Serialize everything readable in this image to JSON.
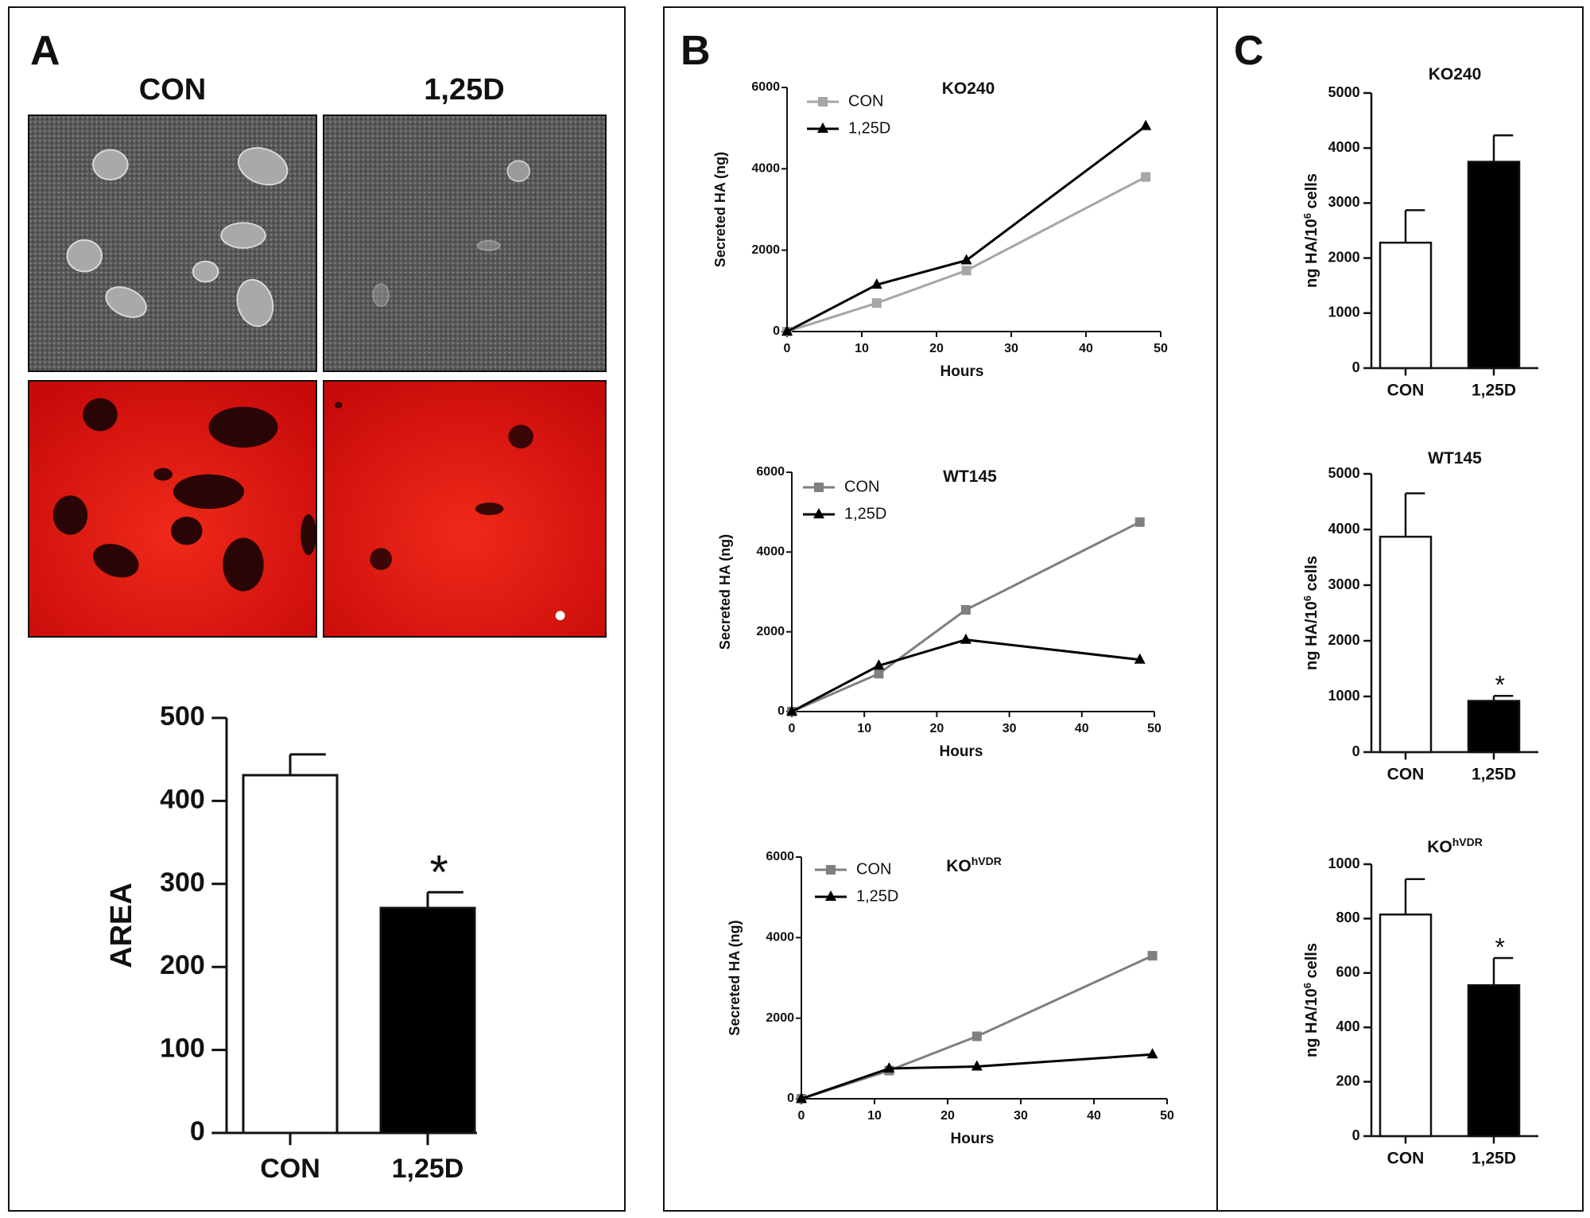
{
  "panels": {
    "a": {
      "letter": "A",
      "col_labels": [
        "CON",
        "1,25D"
      ]
    },
    "b": {
      "letter": "B"
    },
    "c": {
      "letter": "C"
    }
  },
  "micrographs": [
    {
      "name": "phase-contrast-con",
      "kind": "phase",
      "condition": "CON"
    },
    {
      "name": "phase-contrast-125d",
      "kind": "phase",
      "condition": "1,25D"
    },
    {
      "name": "fluorescence-con",
      "kind": "red",
      "condition": "CON"
    },
    {
      "name": "fluorescence-125d",
      "kind": "red",
      "condition": "1,25D"
    }
  ],
  "colors": {
    "black": "#000000",
    "light_gray": "#a6a6a6",
    "mid_gray": "#7f7f7f",
    "red": "#e01010",
    "white": "#ffffff"
  },
  "chart_data": [
    {
      "id": "a-area",
      "type": "bar",
      "title": "",
      "xlabel": "",
      "ylabel": "AREA",
      "categories": [
        "CON",
        "1,25D"
      ],
      "values": [
        431,
        271
      ],
      "errors": [
        25,
        19
      ],
      "fills": [
        "#ffffff",
        "#000000"
      ],
      "significance": [
        "",
        "*"
      ],
      "ylim": [
        0,
        500
      ],
      "yticks": [
        0,
        100,
        200,
        300,
        400,
        500
      ]
    },
    {
      "id": "b-ko240",
      "type": "line",
      "title": "KO240",
      "xlabel": "Hours",
      "ylabel": "Secreted HA (ng)",
      "xlim": [
        0,
        50
      ],
      "ylim": [
        0,
        6000
      ],
      "xticks": [
        0,
        10,
        20,
        30,
        40,
        50
      ],
      "yticks": [
        0,
        2000,
        4000,
        6000
      ],
      "legend": "top-left",
      "series": [
        {
          "name": "CON",
          "color": "#a6a6a6",
          "marker": "square",
          "x": [
            0,
            12,
            24,
            48
          ],
          "y": [
            0,
            700,
            1500,
            3800
          ]
        },
        {
          "name": "1,25D",
          "color": "#000000",
          "marker": "triangle",
          "x": [
            0,
            12,
            24,
            48
          ],
          "y": [
            0,
            1150,
            1750,
            5050
          ]
        }
      ]
    },
    {
      "id": "b-wt145",
      "type": "line",
      "title": "WT145",
      "xlabel": "Hours",
      "ylabel": "Secreted HA (ng)",
      "xlim": [
        0,
        50
      ],
      "ylim": [
        0,
        6000
      ],
      "xticks": [
        0,
        10,
        20,
        30,
        40,
        50
      ],
      "yticks": [
        0,
        2000,
        4000,
        6000
      ],
      "legend": "top-left",
      "series": [
        {
          "name": "CON",
          "color": "#7f7f7f",
          "marker": "square",
          "x": [
            0,
            12,
            24,
            48
          ],
          "y": [
            0,
            950,
            2550,
            4750
          ]
        },
        {
          "name": "1,25D",
          "color": "#000000",
          "marker": "triangle",
          "x": [
            0,
            12,
            24,
            48
          ],
          "y": [
            0,
            1150,
            1800,
            1300
          ]
        }
      ]
    },
    {
      "id": "b-kohvdr",
      "type": "line",
      "title": "KO",
      "title_sup": "hVDR",
      "xlabel": "Hours",
      "ylabel": "Secreted HA (ng)",
      "xlim": [
        0,
        50
      ],
      "ylim": [
        0,
        6000
      ],
      "xticks": [
        0,
        10,
        20,
        30,
        40,
        50
      ],
      "yticks": [
        0,
        2000,
        4000,
        6000
      ],
      "legend": "top-left",
      "series": [
        {
          "name": "CON",
          "color": "#7f7f7f",
          "marker": "square",
          "x": [
            0,
            12,
            24,
            48
          ],
          "y": [
            0,
            700,
            1550,
            3550
          ]
        },
        {
          "name": "1,25D",
          "color": "#000000",
          "marker": "triangle",
          "x": [
            0,
            12,
            24,
            48
          ],
          "y": [
            0,
            750,
            800,
            1100
          ]
        }
      ]
    },
    {
      "id": "c-ko240",
      "type": "bar",
      "title": "KO240",
      "xlabel": "",
      "ylabel": "ng HA/10",
      "ylabel_sup": "6",
      "ylabel_tail": " cells",
      "categories": [
        "CON",
        "1,25D"
      ],
      "values": [
        2280,
        3750
      ],
      "errors": [
        590,
        480
      ],
      "fills": [
        "#ffffff",
        "#000000"
      ],
      "significance": [
        "",
        ""
      ],
      "ylim": [
        0,
        5000
      ],
      "yticks": [
        0,
        1000,
        2000,
        3000,
        4000,
        5000
      ]
    },
    {
      "id": "c-wt145",
      "type": "bar",
      "title": "WT145",
      "xlabel": "",
      "ylabel": "ng HA/10",
      "ylabel_sup": "6",
      "ylabel_tail": " cells",
      "categories": [
        "CON",
        "1,25D"
      ],
      "values": [
        3870,
        920
      ],
      "errors": [
        780,
        90
      ],
      "fills": [
        "#ffffff",
        "#000000"
      ],
      "significance": [
        "",
        "*"
      ],
      "ylim": [
        0,
        5000
      ],
      "yticks": [
        0,
        1000,
        2000,
        3000,
        4000,
        5000
      ]
    },
    {
      "id": "c-kohvdr",
      "type": "bar",
      "title": "KO",
      "title_sup": "hVDR",
      "xlabel": "",
      "ylabel": "ng HA/10",
      "ylabel_sup": "6",
      "ylabel_tail": " cells",
      "categories": [
        "CON",
        "1,25D"
      ],
      "values": [
        815,
        555
      ],
      "errors": [
        130,
        100
      ],
      "fills": [
        "#ffffff",
        "#000000"
      ],
      "significance": [
        "",
        "*"
      ],
      "ylim": [
        0,
        1000
      ],
      "yticks": [
        0,
        200,
        400,
        600,
        800,
        1000
      ]
    }
  ]
}
